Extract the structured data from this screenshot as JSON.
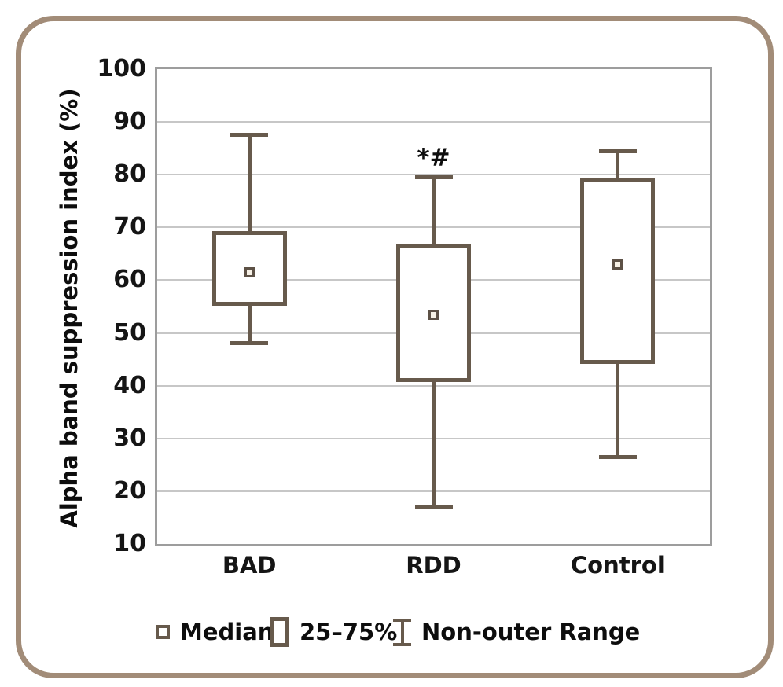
{
  "figure": {
    "border_color": "#a28c78",
    "background": "#ffffff"
  },
  "colors": {
    "box_stroke": "#675a4c",
    "median_fill": "#f7f1e6",
    "axis": "#9d9d9d",
    "gridline": "#c7c7c7",
    "text": "#111111"
  },
  "chart_data": {
    "type": "box",
    "title": "",
    "xlabel": "",
    "ylabel": "Alpha band suppression index (%)",
    "ylim": [
      10,
      100
    ],
    "yticks": [
      100,
      90,
      80,
      70,
      60,
      50,
      40,
      30,
      20,
      10
    ],
    "grid": true,
    "legend_position": "bottom",
    "categories": [
      "BAD",
      "RDD",
      "Control"
    ],
    "series": [
      {
        "category": "BAD",
        "low": 48,
        "q1": 55.5,
        "median": 61.5,
        "q3": 69,
        "high": 87.5,
        "annotation": ""
      },
      {
        "category": "RDD",
        "low": 17,
        "q1": 41,
        "median": 53.5,
        "q3": 66.5,
        "high": 79.5,
        "annotation": "*#"
      },
      {
        "category": "Control",
        "low": 26.5,
        "q1": 44.5,
        "median": 63,
        "q3": 79,
        "high": 84.5,
        "annotation": ""
      }
    ]
  },
  "legend": {
    "items": [
      {
        "icon": "median-marker-icon",
        "label": "Median"
      },
      {
        "icon": "box-icon",
        "label": "25–75%"
      },
      {
        "icon": "whisker-icon",
        "label": "Non-outer Range"
      }
    ]
  }
}
